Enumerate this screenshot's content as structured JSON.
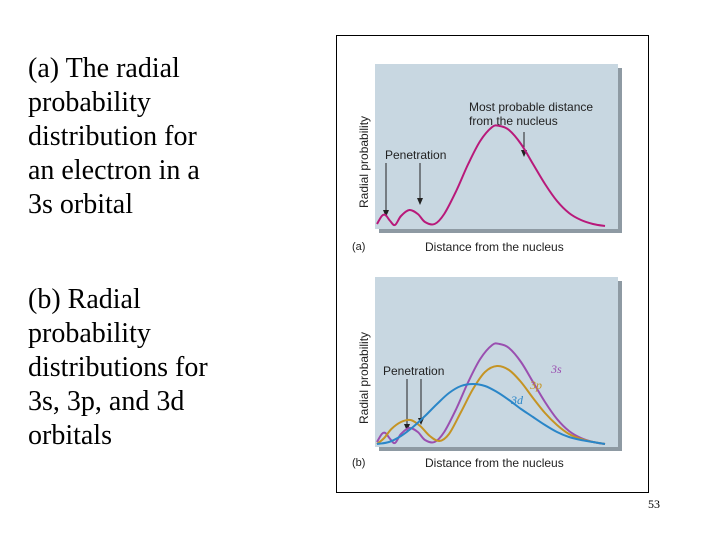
{
  "captions": {
    "a": "(a) The radial\nprobability\ndistribution for\nan electron in a\n3s orbital",
    "b": "(b) Radial\nprobability\ndistributions for\n3s, 3p, and 3d\norbitals"
  },
  "page_number": "53",
  "colors": {
    "panel_bg": "#c8d7e1",
    "shadow": "#8e9aa3",
    "s_curve": "#b8197a",
    "s_curve_b": "#9a4fb0",
    "p_curve": "#c59424",
    "d_curve": "#2a86c8"
  },
  "chart_data": [
    {
      "type": "line",
      "panel_label": "(a)",
      "xlabel": "Distance from the nucleus",
      "ylabel": "Radial probability",
      "xlim": [
        0,
        10
      ],
      "ylim": [
        0,
        1
      ],
      "annotations": {
        "penetration": "Penetration",
        "most_probable": "Most probable distance\nfrom the nucleus"
      },
      "series": [
        {
          "name": "3s",
          "x": [
            0,
            0.2,
            0.35,
            0.55,
            0.75,
            1.0,
            1.35,
            1.7,
            2.0,
            2.4,
            2.8,
            3.3,
            3.8,
            4.3,
            4.8,
            5.1,
            5.5,
            6.0,
            6.5,
            7.0,
            7.5,
            8.0,
            8.5,
            9.0,
            9.5
          ],
          "y": [
            0.02,
            0.1,
            0.11,
            0.05,
            0.01,
            0.1,
            0.16,
            0.12,
            0.04,
            0.02,
            0.12,
            0.35,
            0.62,
            0.85,
            0.99,
            1.0,
            0.96,
            0.82,
            0.62,
            0.42,
            0.25,
            0.13,
            0.06,
            0.02,
            0.0
          ]
        }
      ]
    },
    {
      "type": "line",
      "panel_label": "(b)",
      "xlabel": "Distance from the nucleus",
      "ylabel": "Radial probability",
      "xlim": [
        0,
        10
      ],
      "ylim": [
        0,
        1
      ],
      "annotations": {
        "penetration": "Penetration"
      },
      "series": [
        {
          "name": "3s",
          "x": [
            0,
            0.2,
            0.35,
            0.55,
            0.75,
            1.0,
            1.35,
            1.7,
            2.0,
            2.4,
            2.8,
            3.3,
            3.8,
            4.3,
            4.8,
            5.1,
            5.5,
            6.0,
            6.5,
            7.0,
            7.5,
            8.0,
            8.5,
            9.0,
            9.5
          ],
          "y": [
            0.02,
            0.1,
            0.11,
            0.05,
            0.01,
            0.1,
            0.16,
            0.12,
            0.04,
            0.02,
            0.12,
            0.35,
            0.62,
            0.85,
            0.99,
            1.0,
            0.96,
            0.82,
            0.62,
            0.42,
            0.25,
            0.13,
            0.06,
            0.02,
            0.0
          ]
        },
        {
          "name": "3p",
          "x": [
            0,
            0.3,
            0.6,
            1.0,
            1.4,
            1.8,
            2.2,
            2.6,
            3.0,
            3.5,
            4.0,
            4.5,
            5.0,
            5.5,
            6.0,
            6.5,
            7.0,
            7.5,
            8.0,
            8.5,
            9.0,
            9.5
          ],
          "y": [
            0.0,
            0.06,
            0.15,
            0.22,
            0.24,
            0.18,
            0.08,
            0.03,
            0.1,
            0.32,
            0.55,
            0.72,
            0.78,
            0.74,
            0.62,
            0.46,
            0.31,
            0.19,
            0.1,
            0.05,
            0.02,
            0.0
          ]
        },
        {
          "name": "3d",
          "x": [
            0,
            0.5,
            1.0,
            1.5,
            2.0,
            2.5,
            3.0,
            3.5,
            4.0,
            4.5,
            5.0,
            5.5,
            6.0,
            6.5,
            7.0,
            7.5,
            8.0,
            8.5,
            9.0,
            9.5
          ],
          "y": [
            0.0,
            0.02,
            0.08,
            0.17,
            0.28,
            0.4,
            0.51,
            0.58,
            0.6,
            0.58,
            0.52,
            0.44,
            0.35,
            0.27,
            0.19,
            0.12,
            0.07,
            0.04,
            0.02,
            0.0
          ]
        }
      ]
    }
  ]
}
